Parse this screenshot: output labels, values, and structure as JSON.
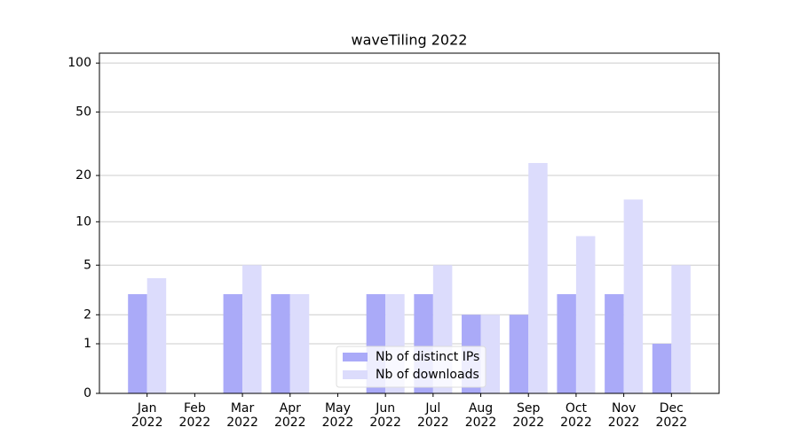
{
  "chart_data": {
    "type": "bar",
    "title": "waveTiling 2022",
    "categories": [
      "Jan\n2022",
      "Feb\n2022",
      "Mar\n2022",
      "Apr\n2022",
      "May\n2022",
      "Jun\n2022",
      "Jul\n2022",
      "Aug\n2022",
      "Sep\n2022",
      "Oct\n2022",
      "Nov\n2022",
      "Dec\n2022"
    ],
    "series": [
      {
        "name": "Nb of distinct IPs",
        "color": "#aaaaf8",
        "values": [
          3,
          0,
          3,
          3,
          0,
          3,
          3,
          2,
          2,
          3,
          3,
          1
        ]
      },
      {
        "name": "Nb of downloads",
        "color": "#dcdcfc",
        "values": [
          4,
          0,
          5,
          3,
          0,
          3,
          5,
          2,
          24,
          8,
          14,
          5
        ]
      }
    ],
    "scale": "log1p",
    "ylim": [
      0,
      115
    ],
    "yticks": [
      0,
      1,
      2,
      5,
      10,
      20,
      50,
      100
    ],
    "grid": true,
    "legend": "lower center"
  }
}
